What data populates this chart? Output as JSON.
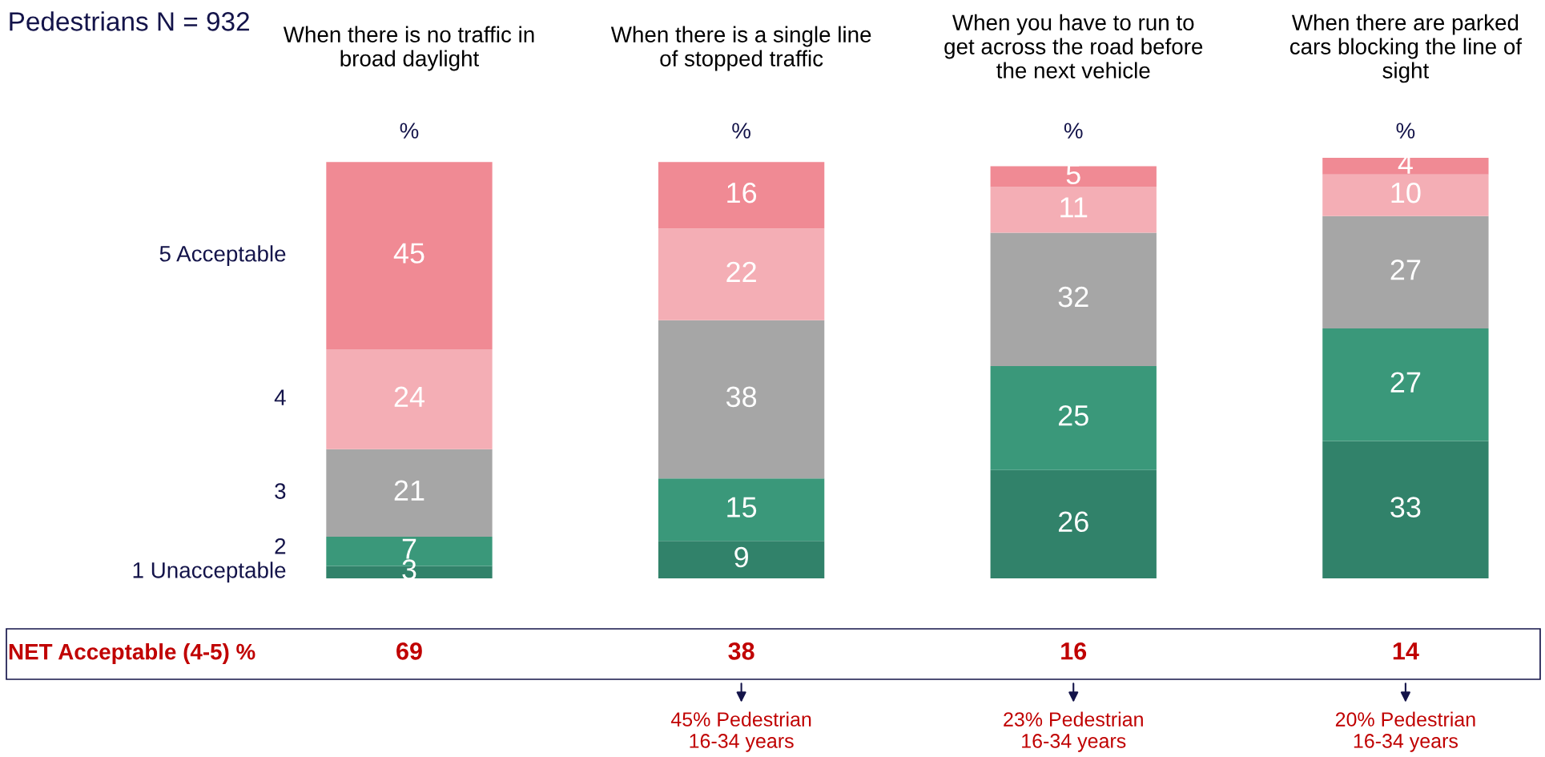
{
  "chart_data": {
    "type": "bar",
    "stacked": true,
    "title": "Pedestrians N = 932",
    "ylabel": "%",
    "categories": [
      "When there is no traffic in broad daylight",
      "When there is a single line of stopped traffic",
      "When you have to run to get across the road before the next vehicle",
      "When there are parked cars blocking the line of sight"
    ],
    "series": [
      {
        "name": "1 Unacceptable",
        "color": "#31826a",
        "values": [
          3,
          9,
          26,
          33
        ]
      },
      {
        "name": "2",
        "color": "#3a987a",
        "values": [
          7,
          15,
          25,
          27
        ]
      },
      {
        "name": "3",
        "color": "#a6a6a6",
        "values": [
          21,
          38,
          32,
          27
        ]
      },
      {
        "name": "4",
        "color": "#f4aeb5",
        "values": [
          24,
          22,
          11,
          10
        ]
      },
      {
        "name": "5 Acceptable",
        "color": "#f08a94",
        "values": [
          45,
          16,
          5,
          4
        ]
      }
    ],
    "ylim": [
      0,
      101
    ],
    "data_labels": true,
    "legend": false,
    "annotations": [
      "NET Acceptable (4-5) %",
      "69",
      "38",
      "16",
      "14",
      "45% Pedestrian\n16-34 years",
      "23% Pedestrian\n16-34 years",
      "20% Pedestrian\n16-34 years"
    ]
  }
}
